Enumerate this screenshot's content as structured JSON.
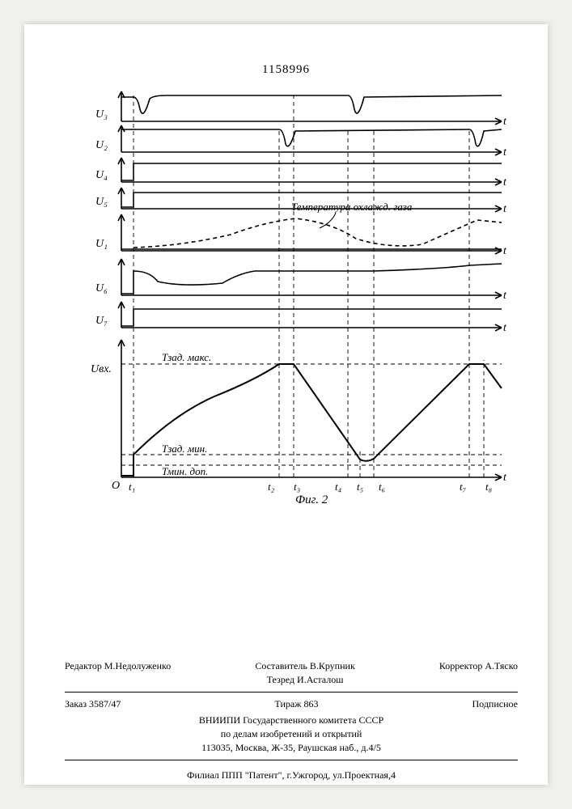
{
  "header": {
    "doc_number": "1158996"
  },
  "diagram": {
    "figure_label": "Фиг. 2",
    "x_origin_label": "О",
    "time_markers": [
      "t₁",
      "t₂",
      "t₃",
      "t₄",
      "t₅",
      "t₆",
      "t₇",
      "t₈"
    ],
    "time_positions": [
      55,
      235,
      253,
      320,
      335,
      352,
      470,
      488
    ],
    "y_labels": [
      "U₃",
      "U₂",
      "U₄",
      "U₅",
      "U₁",
      "U₆",
      "U₇",
      "Uвх."
    ],
    "y_positions": [
      18,
      58,
      98,
      130,
      170,
      225,
      275,
      320
    ],
    "annotation_temp": "Температура охлажд. газа",
    "threshold_labels": {
      "max": "Тзад. макс.",
      "min": "Тзад. мин.",
      "min_dop": "Тмин. доп."
    },
    "threshold_y": {
      "max": 340,
      "min": 452,
      "min_dop": 465
    },
    "x_axis_label": "t",
    "colors": {
      "stroke": "#000000",
      "dash": "#000000",
      "background": "#ffffff"
    },
    "stroke_width": 1.6,
    "dash_pattern": "5,4"
  },
  "credits": {
    "editor_label": "Редактор",
    "editor_name": "М.Недолуженко",
    "compiler_label": "Составитель",
    "compiler_name": "В.Крупник",
    "tezred_label": "Тезред",
    "tezred_name": "И.Асталош",
    "corrector_label": "Корректор",
    "corrector_name": "А.Тяско",
    "order": "Заказ 3587/47",
    "tirazh": "Тираж 863",
    "podpisnoe": "Подписное",
    "org1": "ВНИИПИ Государственного комитета СССР",
    "org2": "по делам изобретений и открытий",
    "address": "113035, Москва, Ж-35, Раушская наб., д.4/5",
    "filial": "Филиал ППП \"Патент\", г.Ужгород, ул.Проектная,4"
  }
}
